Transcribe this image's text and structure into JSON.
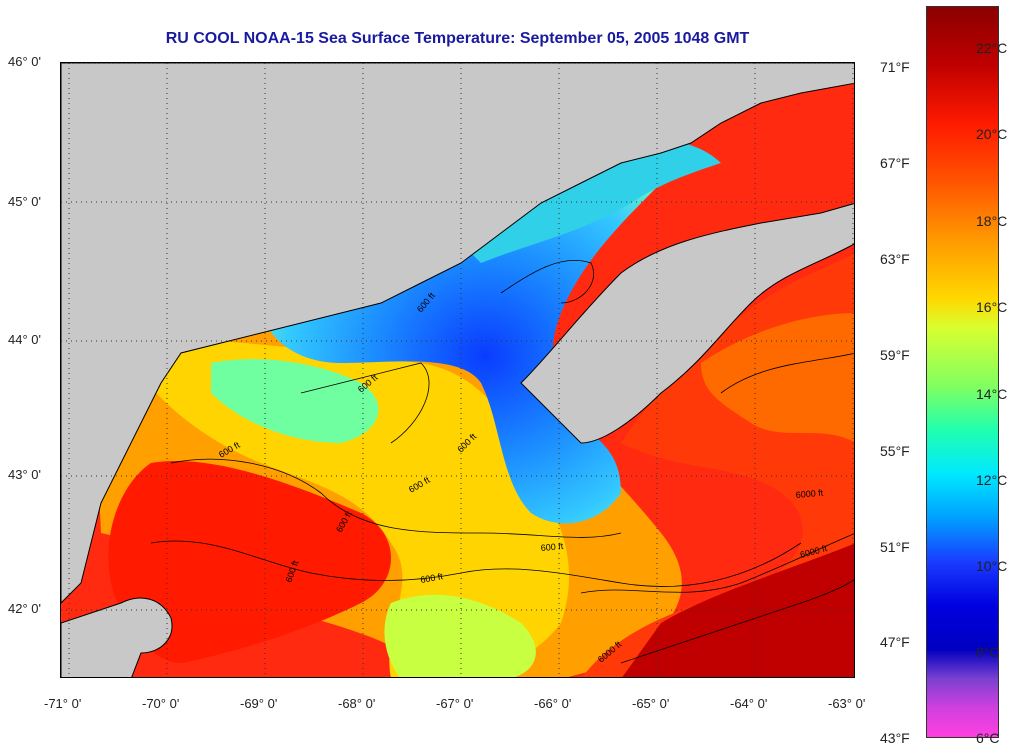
{
  "title": "RU COOL  NOAA-15  Sea Surface Temperature:  September 05, 2005 1048 GMT",
  "lat_labels": [
    "46° 0'",
    "45° 0'",
    "44° 0'",
    "43° 0'",
    "42° 0'"
  ],
  "lon_labels": [
    "-71° 0'",
    "-70° 0'",
    "-69° 0'",
    "-68° 0'",
    "-67° 0'",
    "-66° 0'",
    "-65° 0'",
    "-64° 0'",
    "-63° 0'"
  ],
  "fahrenheit_labels": [
    "71°F",
    "67°F",
    "63°F",
    "59°F",
    "55°F",
    "51°F",
    "47°F",
    "43°F"
  ],
  "celsius_labels": [
    "22°C",
    "20°C",
    "18°C",
    "16°C",
    "14°C",
    "12°C",
    "10°C",
    "8°C",
    "6°C"
  ],
  "contour_labels": [
    "600 ft",
    "600 ft",
    "600 ft",
    "600 ft",
    "600 ft",
    "600 ft",
    "600 ft",
    "600 ft",
    "600 ft",
    "6000 ft",
    "6000 ft",
    "6000 ft"
  ],
  "colors": {
    "land": "#c8c8c8",
    "title": "#1a1aa0",
    "water_warm": "#ff3010",
    "water_cool": "#20b8ff"
  }
}
